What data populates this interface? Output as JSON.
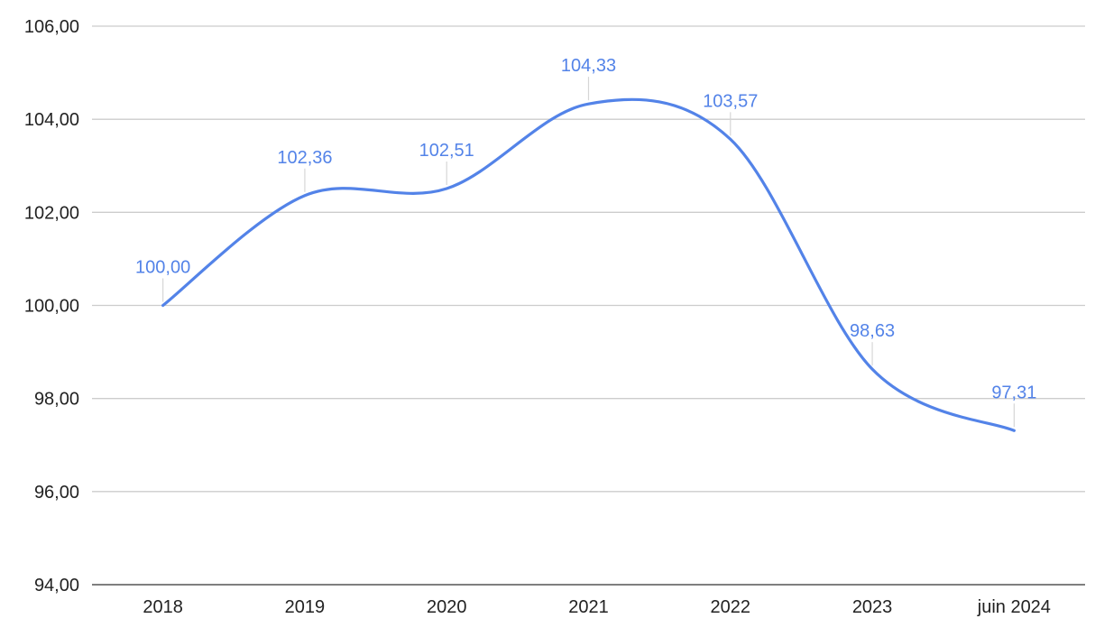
{
  "chart_data": {
    "type": "line",
    "smooth": true,
    "categories": [
      "2018",
      "2019",
      "2020",
      "2021",
      "2022",
      "2023",
      "juin 2024"
    ],
    "series": [
      {
        "values": [
          100.0,
          102.36,
          102.51,
          104.33,
          103.57,
          98.63,
          97.31
        ],
        "labels": [
          "100,00",
          "102,36",
          "102,51",
          "104,33",
          "103,57",
          "98,63",
          "97,31"
        ],
        "color": "#5383e8"
      }
    ],
    "yticks": [
      94,
      96,
      98,
      100,
      102,
      104,
      106
    ],
    "ytick_labels": [
      "94,00",
      "96,00",
      "98,00",
      "100,00",
      "102,00",
      "104,00",
      "106,00"
    ],
    "ylim": [
      94,
      106
    ],
    "grid": true,
    "legend": "none",
    "title": "",
    "xlabel": "",
    "ylabel": ""
  }
}
